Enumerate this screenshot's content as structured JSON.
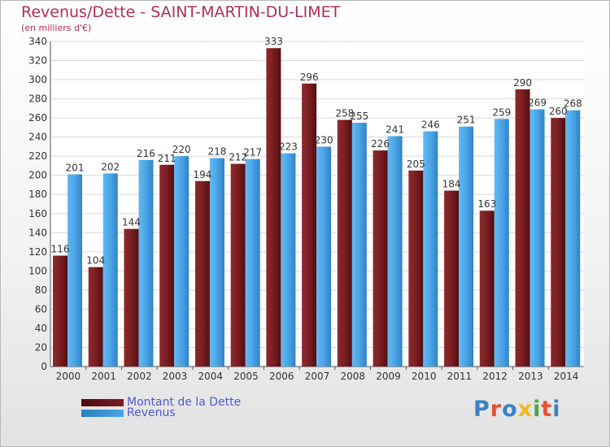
{
  "header": {
    "title": "Revenus/Dette - SAINT-MARTIN-DU-LIMET",
    "subtitle": "(en milliers d'€)"
  },
  "logo": {
    "text": "Proxiti",
    "colors": [
      "#3b82c4",
      "#e8502f",
      "#3b82c4",
      "#f2b61f",
      "#4aa84a",
      "#e8502f",
      "#3b82c4"
    ]
  },
  "colors": {
    "dette": "#7a1e22",
    "revenus": "#4aa5e6",
    "title": "#b22d55",
    "legend_text": "#4e5ad6"
  },
  "chart_data": {
    "type": "bar",
    "title": "Revenus/Dette - SAINT-MARTIN-DU-LIMET",
    "subtitle": "(en milliers d'€)",
    "xlabel": "",
    "ylabel": "",
    "ylim": [
      0,
      340
    ],
    "yticks": [
      0,
      20,
      40,
      60,
      80,
      100,
      120,
      140,
      160,
      180,
      200,
      220,
      240,
      260,
      280,
      300,
      320,
      340
    ],
    "grid": true,
    "legend_position": "bottom-left",
    "categories": [
      "2000",
      "2001",
      "2002",
      "2003",
      "2004",
      "2005",
      "2006",
      "2007",
      "2008",
      "2009",
      "2010",
      "2011",
      "2012",
      "2013",
      "2014"
    ],
    "series": [
      {
        "name": "Montant de la Dette",
        "color": "#7a1e22",
        "values": [
          116,
          104,
          144,
          211,
          194,
          212,
          333,
          296,
          258,
          226,
          205,
          184,
          163,
          290,
          260
        ]
      },
      {
        "name": "Revenus",
        "color": "#4aa5e6",
        "values": [
          201,
          202,
          216,
          220,
          218,
          217,
          223,
          230,
          255,
          241,
          246,
          251,
          259,
          269,
          268
        ]
      }
    ]
  }
}
